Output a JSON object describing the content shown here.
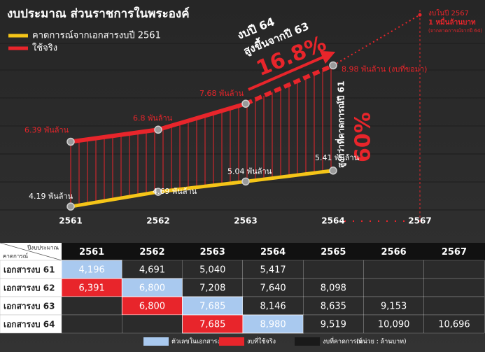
{
  "chart_data": {
    "type": "line",
    "title": "งบประมาณ ส่วนราชการในพระองค์",
    "categories": [
      "2561",
      "2562",
      "2563",
      "2564"
    ],
    "ylim": [
      3.6,
      11.2
    ],
    "series": [
      {
        "name": "คาดการณ์จากเอกสารงบปี 2561",
        "color": "#f5c518",
        "values": [
          4.19,
          4.69,
          5.04,
          5.41
        ],
        "value_labels": [
          "4.19 พันล้าน",
          "4.69 พันล้าน",
          "5.04 พันล้าน",
          "5.41 พันล้าน"
        ]
      },
      {
        "name": "ใช้จริง",
        "color": "#e8252b",
        "values": [
          6.39,
          6.8,
          7.68,
          8.98
        ],
        "value_labels": [
          "6.39 พันล้าน",
          "6.8 พันล้าน",
          "7.68 พันล้าน",
          "8.98 พันล้าน (งบที่ขอมา)"
        ]
      }
    ],
    "projection": {
      "category": "2567",
      "value": 10.696,
      "lines": [
        "งบในปี 2567",
        "1 หมื่นล้านบาท",
        "(จากคาดการณ์จากปี 64)"
      ]
    },
    "annotations": {
      "rise": [
        "งบปี 64",
        "สูงขึ้นจากปี 63",
        "16.8%"
      ],
      "over": [
        "สูงกว่าที่คาดการณ์ปี 61",
        "60%"
      ]
    }
  },
  "table": {
    "corner": [
      "ปีงบประมาณ",
      "คาดการณ์"
    ],
    "columns": [
      "2561",
      "2562",
      "2563",
      "2564",
      "2565",
      "2566",
      "2567"
    ],
    "rows": [
      {
        "label": "เอกสารงบ 61",
        "cells": [
          {
            "text": "4,196",
            "color": "#a9c9ef"
          },
          {
            "text": "4,691"
          },
          {
            "text": "5,040"
          },
          {
            "text": "5,417"
          },
          null,
          null,
          null
        ]
      },
      {
        "label": "เอกสารงบ 62",
        "cells": [
          {
            "text": "6,391",
            "color": "#e8252b"
          },
          {
            "text": "6,800",
            "color": "#a9c9ef"
          },
          {
            "text": "7,208"
          },
          {
            "text": "7,640"
          },
          {
            "text": "8,098"
          },
          null,
          null
        ]
      },
      {
        "label": "เอกสารงบ 63",
        "cells": [
          null,
          {
            "text": "6,800",
            "color": "#e8252b"
          },
          {
            "text": "7,685",
            "color": "#a9c9ef"
          },
          {
            "text": "8,146"
          },
          {
            "text": "8,635"
          },
          {
            "text": "9,153"
          },
          null
        ]
      },
      {
        "label": "เอกสารงบ 64",
        "cells": [
          null,
          null,
          {
            "text": "7,685",
            "color": "#e8252b"
          },
          {
            "text": "8,980",
            "color": "#a9c9ef"
          },
          {
            "text": "9,519"
          },
          {
            "text": "10,090"
          },
          {
            "text": "10,696"
          }
        ]
      }
    ],
    "legend": [
      {
        "label": "ตัวเลขในเอกสารงบ",
        "color": "#a9c9ef"
      },
      {
        "label": "งบที่ใช้จริง",
        "color": "#e8252b"
      },
      {
        "label": "งบที่คาดการณ์",
        "color": "#1a1a1a"
      }
    ],
    "unit": "(หน่วย : ล้านบาท)"
  }
}
